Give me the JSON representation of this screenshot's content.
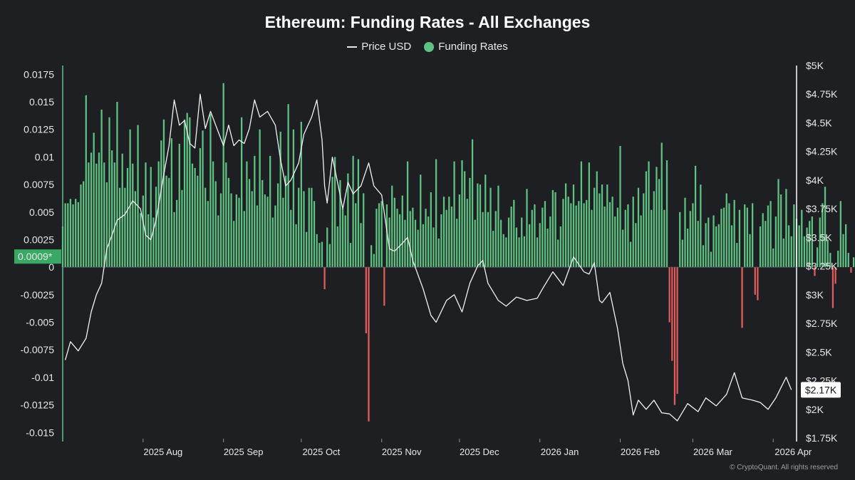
{
  "page": {
    "footer": "© CryptoQuant. All rights reserved"
  },
  "chart_data": {
    "type": "bar",
    "title": "Ethereum: Funding Rates - All Exchanges",
    "legend": [
      {
        "name": "Price USD",
        "marker": "line",
        "color": "#e8e8e8"
      },
      {
        "name": "Funding Rates",
        "marker": "dot",
        "color": "#5ec283"
      }
    ],
    "legend_position": "top-center",
    "grid": false,
    "x_axis": {
      "type": "date",
      "range": [
        "2025-07-01",
        "2026-04-10"
      ],
      "ticks": [
        {
          "date": "2025-08-01",
          "label": "2025 Aug"
        },
        {
          "date": "2025-09-01",
          "label": "2025 Sep"
        },
        {
          "date": "2025-10-01",
          "label": "2025 Oct"
        },
        {
          "date": "2025-11-01",
          "label": "2025 Nov"
        },
        {
          "date": "2025-12-01",
          "label": "2025 Dec"
        },
        {
          "date": "2026-01-01",
          "label": "2026 Jan"
        },
        {
          "date": "2026-02-01",
          "label": "2026 Feb"
        },
        {
          "date": "2026-03-01",
          "label": "2026 Mar"
        },
        {
          "date": "2026-04-01",
          "label": "2026 Apr"
        }
      ]
    },
    "y_left": {
      "range": [
        -0.0155,
        0.0183
      ],
      "ticks": [
        {
          "v": 0.0175,
          "label": "0.0175"
        },
        {
          "v": 0.015,
          "label": "0.015"
        },
        {
          "v": 0.0125,
          "label": "0.0125"
        },
        {
          "v": 0.01,
          "label": "0.01"
        },
        {
          "v": 0.0075,
          "label": "0.0075"
        },
        {
          "v": 0.005,
          "label": "0.005"
        },
        {
          "v": 0.0025,
          "label": "0.0025"
        },
        {
          "v": 0,
          "label": "0"
        },
        {
          "v": -0.0025,
          "label": "-0.0025"
        },
        {
          "v": -0.005,
          "label": "-0.005"
        },
        {
          "v": -0.0075,
          "label": "-0.0075"
        },
        {
          "v": -0.01,
          "label": "-0.01"
        },
        {
          "v": -0.0125,
          "label": "-0.0125"
        },
        {
          "v": -0.015,
          "label": "-0.015"
        }
      ],
      "current_value_label": "0.0009*",
      "current_value": 0.0009
    },
    "y_right": {
      "range": [
        1750,
        5000
      ],
      "ticks": [
        {
          "v": 5000,
          "label": "$5K"
        },
        {
          "v": 4750,
          "label": "$4.75K"
        },
        {
          "v": 4500,
          "label": "$4.5K"
        },
        {
          "v": 4250,
          "label": "$4.25K"
        },
        {
          "v": 4000,
          "label": "$4K"
        },
        {
          "v": 3750,
          "label": "$3.75K"
        },
        {
          "v": 3500,
          "label": "$3.5K"
        },
        {
          "v": 3250,
          "label": "$3.25K"
        },
        {
          "v": 3000,
          "label": "$3K"
        },
        {
          "v": 2750,
          "label": "$2.75K"
        },
        {
          "v": 2500,
          "label": "$2.5K"
        },
        {
          "v": 2250,
          "label": "$2.25K"
        },
        {
          "v": 2000,
          "label": "$2K"
        },
        {
          "v": 1750,
          "label": "$1.75K"
        }
      ],
      "current_value_label": "$2.17K",
      "current_value": 2170
    },
    "series": [
      {
        "name": "Funding Rates",
        "kind": "bar",
        "color_positive": "#5ec283",
        "color_negative": "#e25c5c",
        "start_date": "2025-07-01",
        "interval_days": 1,
        "values": [
          0.0037,
          0.0058,
          0.0058,
          0.0062,
          0.0057,
          0.0062,
          0.0059,
          0.0075,
          0.0078,
          0.0156,
          0.0095,
          0.0104,
          0.0122,
          0.0094,
          0.0104,
          0.0143,
          0.0095,
          0.0077,
          0.0136,
          0.0106,
          0.0095,
          0.015,
          0.0072,
          0.0103,
          0.0072,
          0.009,
          0.0125,
          0.0094,
          0.0069,
          0.0129,
          0.0049,
          0.0065,
          0.0095,
          0.0048,
          0.0091,
          0.0045,
          0.0073,
          0.0096,
          0.0115,
          0.0134,
          0.0083,
          0.0081,
          0.0117,
          0.005,
          0.0061,
          0.0112,
          0.007,
          0.0134,
          0.014,
          0.0136,
          0.0094,
          0.009,
          0.0083,
          0.0108,
          0.0124,
          0.0072,
          0.006,
          0.0139,
          0.0096,
          0.0078,
          0.0047,
          0.0067,
          0.0167,
          0.0095,
          0.0081,
          0.0067,
          0.0042,
          0.0066,
          0.0063,
          0.0136,
          0.0051,
          0.0096,
          0.008,
          0.0069,
          0.0101,
          0.0056,
          0.0125,
          0.0079,
          0.0066,
          0.0064,
          0.0101,
          0.0045,
          0.0056,
          0.0076,
          0.0123,
          0.0063,
          0.0083,
          0.0148,
          0.0052,
          0.0125,
          0.0039,
          0.0072,
          0.0132,
          0.0069,
          0.0032,
          0.0072,
          0.0072,
          0.006,
          0.003,
          0.0022,
          0.0023,
          -0.002,
          0.0036,
          0.0021,
          0.0082,
          0.01,
          0.0037,
          0.0079,
          0.0053,
          0.0047,
          0.0085,
          0.0022,
          0.0101,
          0.0058,
          0.0098,
          0.004,
          0.0067,
          -0.006,
          -0.014,
          0.002,
          0.0012,
          0.0053,
          0.0058,
          0.006,
          -0.0035,
          0.0057,
          0.0045,
          0.0074,
          0.0063,
          0.0053,
          0.0048,
          0.0065,
          0.0043,
          0.0096,
          0.0051,
          0.0054,
          0.0043,
          0.0034,
          0.0084,
          0.0039,
          0.0053,
          0.0046,
          0.0068,
          0.0036,
          0.0098,
          0.0026,
          0.0048,
          0.0064,
          0.0052,
          0.0064,
          0.0055,
          0.0096,
          0.0044,
          0.0066,
          0.0097,
          0.0087,
          0.0062,
          0.0081,
          0.0116,
          0.0043,
          0.0076,
          0.0075,
          0.005,
          0.0084,
          0.005,
          0.0072,
          0.0033,
          0.0051,
          0.0074,
          0.0043,
          0.003,
          0.0027,
          0.0045,
          0.0055,
          0.0061,
          0.0036,
          0.0027,
          0.0045,
          0.0028,
          0.0071,
          0.0039,
          0.0052,
          0.0057,
          0.0027,
          0.004,
          0.0054,
          0.006,
          0.0035,
          0.0046,
          0.007,
          0.0068,
          0.0025,
          0.0037,
          0.0062,
          0.0076,
          0.0064,
          0.0058,
          0.0075,
          0.0056,
          0.006,
          0.0096,
          0.0058,
          0.0061,
          0.0095,
          0.0052,
          0.0072,
          0.0087,
          0.0067,
          0.0075,
          0.0055,
          0.0075,
          0.0059,
          0.0064,
          0.0046,
          0.0054,
          0.011,
          0.0034,
          0.0052,
          0.0057,
          0.0023,
          0.0064,
          0.004,
          0.0072,
          0.0047,
          0.0067,
          0.0087,
          0.0096,
          0.0052,
          0.0069,
          0.0091,
          0.008,
          0.0113,
          0.0052,
          0.0097,
          -0.005,
          -0.0085,
          -0.0125,
          -0.0115,
          0.005,
          0.0025,
          0.0063,
          0.0035,
          0.0051,
          0.0058,
          0.0092,
          0.0042,
          0.0075,
          0.002,
          0.004,
          0.0045,
          0.0014,
          0.0047,
          0.0037,
          0.0039,
          0.0053,
          0.0054,
          0.0067,
          0.0058,
          0.0038,
          0.0061,
          0.0022,
          0.0052,
          -0.0055,
          0.0057,
          0.0054,
          0.003,
          0.0058,
          -0.0025,
          -0.003,
          0.0037,
          0.0049,
          0.0042,
          0.0056,
          0.006,
          0.0017,
          0.0046,
          0.008,
          0.0066,
          0.0026,
          0.0071,
          0.0038,
          0.0028,
          0.0057,
          0.0044,
          0.0038,
          0.0052,
          0.0028,
          0.0036,
          0.0042,
          0.0046,
          -0.0008,
          0.0018,
          0.0045,
          0.0058,
          0.0073,
          0.0025,
          0.0013,
          -0.0037,
          -0.0015,
          0.0015,
          0.006,
          0.003,
          0.0039,
          0.0013,
          -0.0005,
          0.0009
        ]
      },
      {
        "name": "Price USD",
        "kind": "line",
        "color": "#f2f2f2",
        "points": [
          [
            "2025-07-02",
            2430
          ],
          [
            "2025-07-04",
            2590
          ],
          [
            "2025-07-07",
            2510
          ],
          [
            "2025-07-10",
            2620
          ],
          [
            "2025-07-12",
            2850
          ],
          [
            "2025-07-14",
            3000
          ],
          [
            "2025-07-16",
            3100
          ],
          [
            "2025-07-18",
            3400
          ],
          [
            "2025-07-20",
            3520
          ],
          [
            "2025-07-22",
            3650
          ],
          [
            "2025-07-25",
            3700
          ],
          [
            "2025-07-28",
            3820
          ],
          [
            "2025-07-31",
            3750
          ],
          [
            "2025-08-02",
            3520
          ],
          [
            "2025-08-04",
            3480
          ],
          [
            "2025-08-06",
            3650
          ],
          [
            "2025-08-09",
            4050
          ],
          [
            "2025-08-11",
            4300
          ],
          [
            "2025-08-13",
            4700
          ],
          [
            "2025-08-15",
            4480
          ],
          [
            "2025-08-17",
            4520
          ],
          [
            "2025-08-19",
            4320
          ],
          [
            "2025-08-21",
            4280
          ],
          [
            "2025-08-23",
            4750
          ],
          [
            "2025-08-25",
            4450
          ],
          [
            "2025-08-27",
            4600
          ],
          [
            "2025-08-29",
            4480
          ],
          [
            "2025-09-01",
            4300
          ],
          [
            "2025-09-03",
            4480
          ],
          [
            "2025-09-05",
            4300
          ],
          [
            "2025-09-07",
            4350
          ],
          [
            "2025-09-09",
            4320
          ],
          [
            "2025-09-11",
            4450
          ],
          [
            "2025-09-13",
            4700
          ],
          [
            "2025-09-15",
            4550
          ],
          [
            "2025-09-18",
            4600
          ],
          [
            "2025-09-21",
            4480
          ],
          [
            "2025-09-23",
            4180
          ],
          [
            "2025-09-25",
            3950
          ],
          [
            "2025-09-27",
            4000
          ],
          [
            "2025-09-30",
            4150
          ],
          [
            "2025-10-02",
            4400
          ],
          [
            "2025-10-05",
            4550
          ],
          [
            "2025-10-07",
            4700
          ],
          [
            "2025-10-09",
            4350
          ],
          [
            "2025-10-10",
            3950
          ],
          [
            "2025-10-11",
            3800
          ],
          [
            "2025-10-13",
            4200
          ],
          [
            "2025-10-15",
            3980
          ],
          [
            "2025-10-17",
            3750
          ],
          [
            "2025-10-19",
            3980
          ],
          [
            "2025-10-21",
            3880
          ],
          [
            "2025-10-24",
            3950
          ],
          [
            "2025-10-27",
            4150
          ],
          [
            "2025-10-29",
            3950
          ],
          [
            "2025-11-01",
            3870
          ],
          [
            "2025-11-04",
            3400
          ],
          [
            "2025-11-06",
            3380
          ],
          [
            "2025-11-09",
            3450
          ],
          [
            "2025-11-11",
            3500
          ],
          [
            "2025-11-13",
            3300
          ],
          [
            "2025-11-17",
            3050
          ],
          [
            "2025-11-20",
            2820
          ],
          [
            "2025-11-22",
            2760
          ],
          [
            "2025-11-26",
            2950
          ],
          [
            "2025-11-29",
            3000
          ],
          [
            "2025-12-02",
            2850
          ],
          [
            "2025-12-05",
            3100
          ],
          [
            "2025-12-08",
            3250
          ],
          [
            "2025-12-10",
            3300
          ],
          [
            "2025-12-12",
            3100
          ],
          [
            "2025-12-16",
            2950
          ],
          [
            "2025-12-19",
            2900
          ],
          [
            "2025-12-23",
            2980
          ],
          [
            "2025-12-27",
            2950
          ],
          [
            "2025-12-31",
            2970
          ],
          [
            "2026-01-02",
            3050
          ],
          [
            "2026-01-06",
            3200
          ],
          [
            "2026-01-10",
            3080
          ],
          [
            "2026-01-14",
            3330
          ],
          [
            "2026-01-18",
            3200
          ],
          [
            "2026-01-20",
            3180
          ],
          [
            "2026-01-22",
            3280
          ],
          [
            "2026-01-24",
            2950
          ],
          [
            "2026-01-25",
            2930
          ],
          [
            "2026-01-28",
            3020
          ],
          [
            "2026-01-31",
            2700
          ],
          [
            "2026-02-02",
            2400
          ],
          [
            "2026-02-04",
            2250
          ],
          [
            "2026-02-06",
            1950
          ],
          [
            "2026-02-08",
            2080
          ],
          [
            "2026-02-11",
            2000
          ],
          [
            "2026-02-14",
            2080
          ],
          [
            "2026-02-17",
            1970
          ],
          [
            "2026-02-20",
            1960
          ],
          [
            "2026-02-23",
            1900
          ],
          [
            "2026-02-27",
            2050
          ],
          [
            "2026-03-03",
            1980
          ],
          [
            "2026-03-06",
            2100
          ],
          [
            "2026-03-10",
            2030
          ],
          [
            "2026-03-14",
            2130
          ],
          [
            "2026-03-17",
            2320
          ],
          [
            "2026-03-20",
            2100
          ],
          [
            "2026-03-24",
            2080
          ],
          [
            "2026-03-27",
            2060
          ],
          [
            "2026-03-30",
            2000
          ],
          [
            "2026-04-02",
            2100
          ],
          [
            "2026-04-06",
            2280
          ],
          [
            "2026-04-08",
            2170
          ]
        ]
      }
    ]
  }
}
